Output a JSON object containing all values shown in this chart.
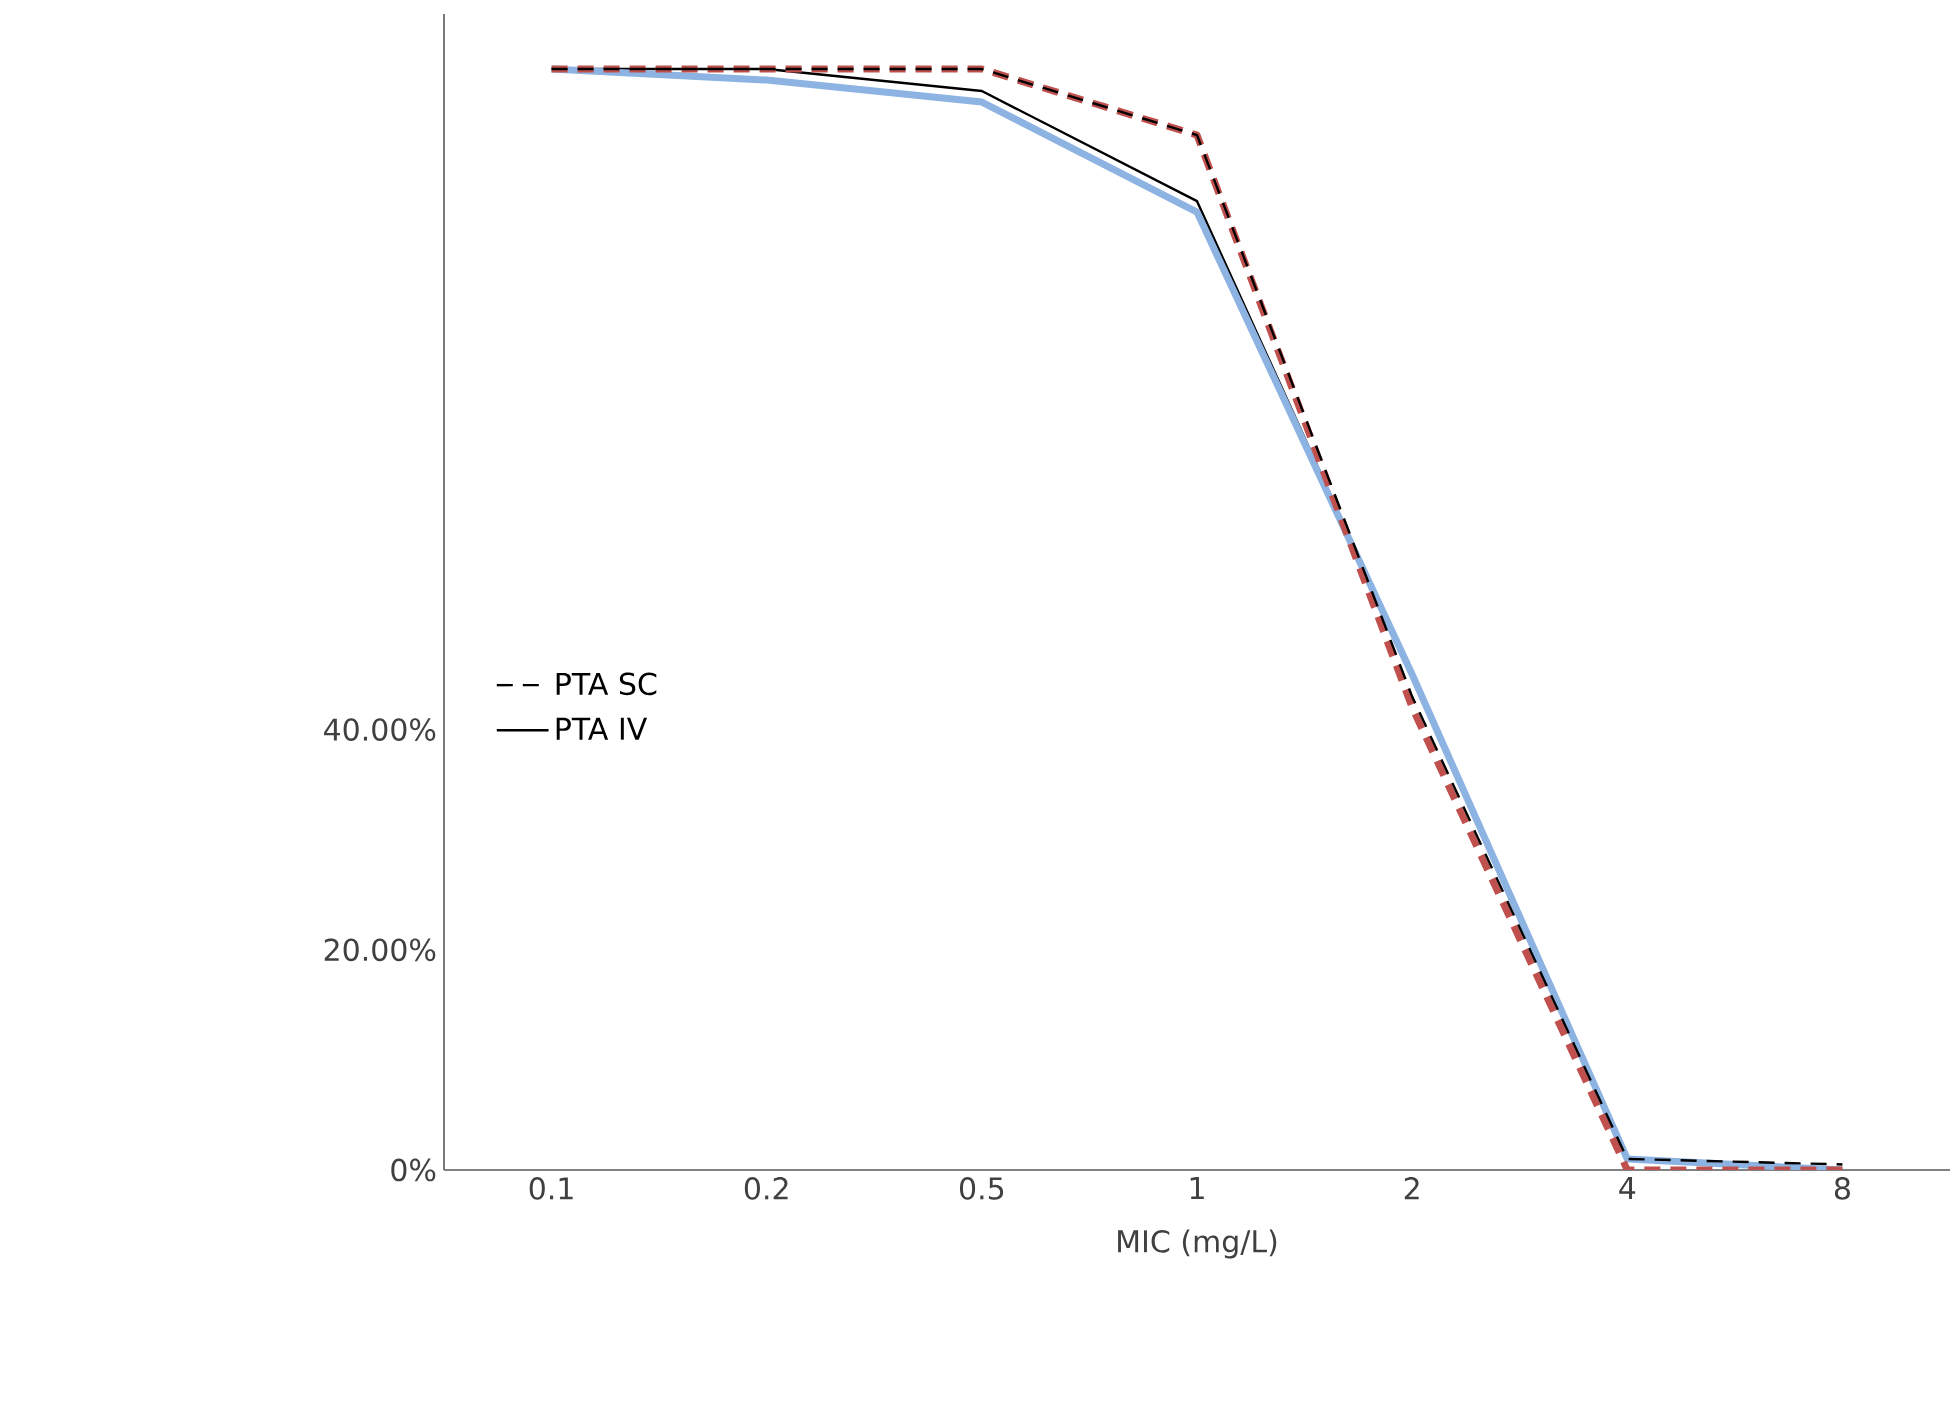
{
  "chart_data": {
    "type": "line",
    "xlabel": "MIC (mg/L)",
    "categories": [
      "0.1",
      "0.2",
      "0.5",
      "1",
      "2",
      "4",
      "8"
    ],
    "series": [
      {
        "name": "PTA IV",
        "color": "#000000",
        "line_style": "solid",
        "values": [
          100,
          100,
          98,
          88,
          45,
          1,
          0
        ]
      },
      {
        "color": "#8db3e2",
        "line_style": "solid",
        "values": [
          100,
          99,
          97,
          87,
          45,
          1,
          0
        ]
      },
      {
        "color": "#c0504d",
        "line_style": "dashed",
        "values": [
          100,
          100,
          100,
          94,
          42,
          0,
          0
        ]
      },
      {
        "name": "PTA SC",
        "color": "#000000",
        "line_style": "dashed",
        "values": [
          100,
          100,
          100,
          94,
          43,
          1,
          0.5
        ]
      }
    ],
    "ylim": [
      0,
      105
    ],
    "yticks": [
      {
        "value": 0,
        "label": "0%"
      },
      {
        "value": 20,
        "label": "20.00%"
      },
      {
        "value": 40,
        "label": "40.00%"
      }
    ],
    "grid": false,
    "legend": "left",
    "marker": "none"
  }
}
